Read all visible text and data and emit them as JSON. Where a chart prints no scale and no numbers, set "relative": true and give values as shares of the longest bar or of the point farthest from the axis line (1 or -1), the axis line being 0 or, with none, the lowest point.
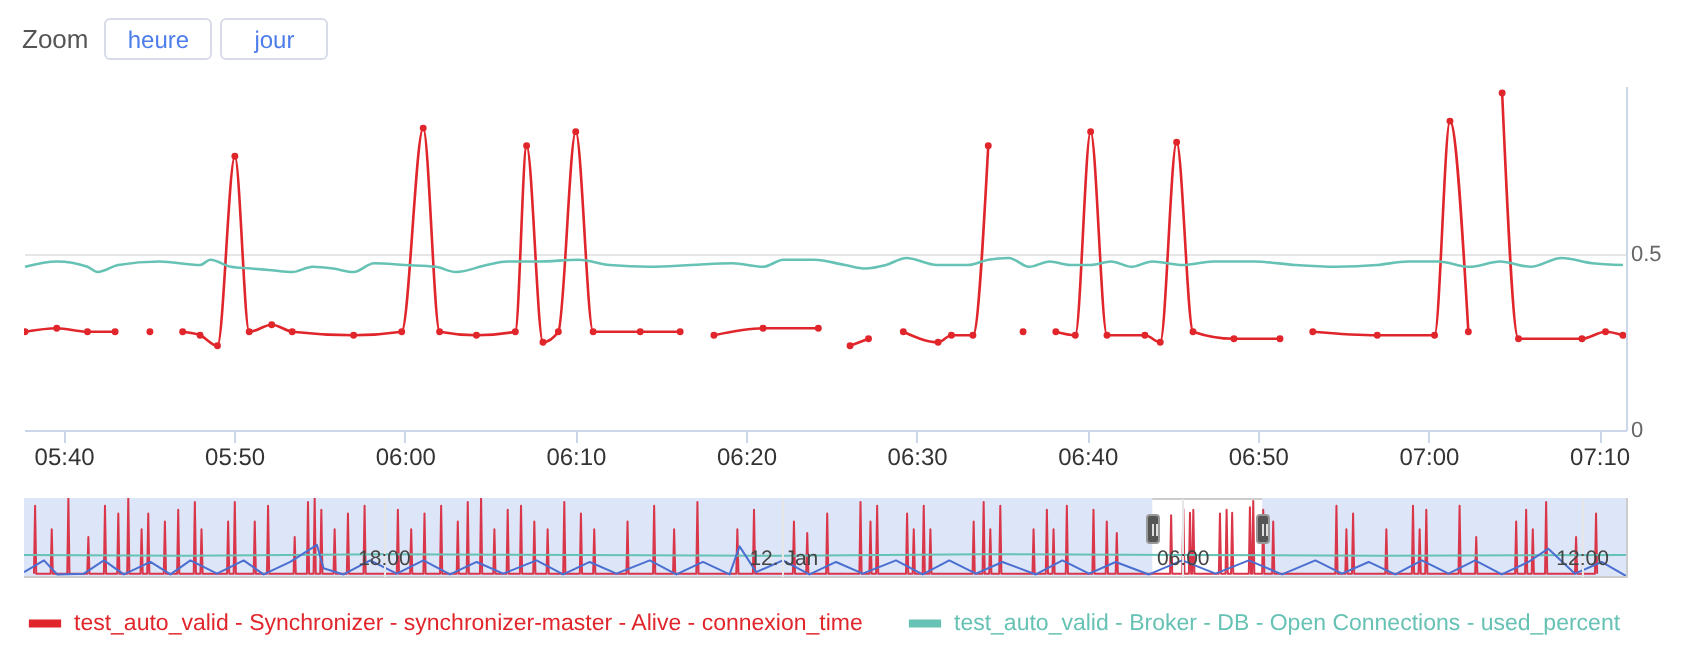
{
  "chart_data": [
    {
      "type": "line",
      "annotations": [
        "Zoom",
        "heure",
        "jour"
      ],
      "xlim": [
        5.628,
        7.193
      ],
      "xticks": [
        {
          "value": 5.6667,
          "label": "05:40"
        },
        {
          "value": 5.8333,
          "label": "05:50"
        },
        {
          "value": 6,
          "label": "06:00"
        },
        {
          "value": 6.1667,
          "label": "06:10"
        },
        {
          "value": 6.3333,
          "label": "06:20"
        },
        {
          "value": 6.5,
          "label": "06:30"
        },
        {
          "value": 6.6667,
          "label": "06:40"
        },
        {
          "value": 6.8333,
          "label": "06:50"
        },
        {
          "value": 7,
          "label": "07:00"
        },
        {
          "value": 7.1667,
          "label": "07:10"
        }
      ],
      "ylim": [
        0,
        0.98
      ],
      "yticks": [
        0,
        0.5
      ],
      "grid": "y",
      "legend": "bottom",
      "series": [
        {
          "name": "test_auto_valid - Synchronizer - synchronizer-master - Alive - connexion_time",
          "color": "#e0252b",
          "marker": "circle",
          "x": [
            5.629,
            5.66,
            5.69,
            5.717,
            5.734,
            5.751,
            5.767,
            5.783,
            5.8,
            5.817,
            5.834,
            5.848,
            5.87,
            5.89,
            5.95,
            5.997,
            6.018,
            6.034,
            6.07,
            6.108,
            6.119,
            6.135,
            6.15,
            6.167,
            6.184,
            6.23,
            6.269,
            6.285,
            6.302,
            6.35,
            6.404,
            6.42,
            6.435,
            6.453,
            6.47,
            6.487,
            6.521,
            6.534,
            6.555,
            6.57,
            6.587,
            6.604,
            6.62,
            6.636,
            6.655,
            6.67,
            6.686,
            6.723,
            6.738,
            6.754,
            6.77,
            6.81,
            6.855,
            6.87,
            6.887,
            6.95,
            7.006,
            7.021,
            7.039,
            7.055,
            7.072,
            7.088,
            7.15,
            7.173,
            7.19
          ],
          "values": [
            0.28,
            0.29,
            0.28,
            0.28,
            null,
            0.28,
            null,
            0.28,
            0.27,
            0.24,
            0.78,
            0.28,
            0.3,
            0.28,
            0.27,
            0.28,
            0.86,
            0.28,
            0.27,
            0.28,
            0.81,
            0.25,
            0.28,
            0.85,
            0.28,
            0.28,
            0.28,
            null,
            0.27,
            0.29,
            0.29,
            null,
            0.24,
            0.26,
            null,
            0.28,
            0.25,
            0.27,
            0.27,
            0.81,
            null,
            0.28,
            null,
            0.28,
            0.27,
            0.85,
            0.27,
            0.27,
            0.25,
            0.82,
            0.28,
            0.26,
            0.26,
            null,
            0.28,
            0.27,
            0.27,
            0.88,
            0.28,
            null,
            0.96,
            0.26,
            0.26,
            0.28,
            0.27
          ]
        },
        {
          "name": "test_auto_valid - Broker - DB - Open Connections - used_percent",
          "color": "#66c2b4",
          "marker": "none",
          "x": [
            5.629,
            5.66,
            5.69,
            5.7,
            5.72,
            5.76,
            5.8,
            5.81,
            5.83,
            5.85,
            5.87,
            5.89,
            5.91,
            5.93,
            5.95,
            5.97,
            6,
            6.03,
            6.05,
            6.08,
            6.1,
            6.13,
            6.17,
            6.2,
            6.24,
            6.28,
            6.32,
            6.35,
            6.37,
            6.4,
            6.43,
            6.45,
            6.47,
            6.49,
            6.52,
            6.55,
            6.57,
            6.59,
            6.61,
            6.63,
            6.65,
            6.67,
            6.69,
            6.71,
            6.73,
            6.76,
            6.79,
            6.83,
            6.87,
            6.91,
            6.95,
            6.98,
            7.01,
            7.04,
            7.07,
            7.1,
            7.13,
            7.16,
            7.19
          ],
          "values": [
            0.465,
            0.48,
            0.465,
            0.45,
            0.47,
            0.48,
            0.47,
            0.485,
            0.465,
            0.46,
            0.455,
            0.45,
            0.465,
            0.46,
            0.45,
            0.475,
            0.47,
            0.465,
            0.45,
            0.47,
            0.48,
            0.48,
            0.485,
            0.47,
            0.465,
            0.47,
            0.475,
            0.465,
            0.485,
            0.485,
            0.47,
            0.46,
            0.47,
            0.49,
            0.47,
            0.47,
            0.485,
            0.49,
            0.465,
            0.48,
            0.47,
            0.47,
            0.48,
            0.465,
            0.48,
            0.47,
            0.48,
            0.48,
            0.47,
            0.465,
            0.47,
            0.48,
            0.48,
            0.465,
            0.48,
            0.465,
            0.49,
            0.475,
            0.47
          ]
        }
      ]
    },
    {
      "type": "line",
      "relative": true,
      "xlim": [
        "--01-11T12:36",
        "--01-12T12:40"
      ],
      "xticks": [
        {
          "value": "--01-11T18:00",
          "label": "18:00"
        },
        {
          "value": "--01-12T00:00",
          "label": "12. Jan"
        },
        {
          "value": "--01-12T06:00",
          "label": "06:00"
        },
        {
          "value": "--01-12T12:00",
          "label": "12:00"
        }
      ],
      "grid": "x",
      "bands": [
        {
          "axis": "x",
          "from": "--01-11T12:36",
          "to": "--01-12T05:33",
          "color": "#dde5f8"
        },
        {
          "axis": "x",
          "from": "--01-12T07:12",
          "to": "--01-12T12:40",
          "color": "#dde5f8"
        }
      ],
      "series": [
        {
          "color": "#d9364a",
          "x": [
            "--01-11T12:45",
            "--01-11T12:46",
            "--01-11T12:47",
            "--01-11T13:00",
            "--01-11T13:01",
            "--01-11T13:02",
            "--01-11T13:15",
            "--01-11T13:16",
            "--01-11T13:17",
            "--01-11T13:33",
            "--01-11T13:34",
            "--01-11T13:35",
            "--01-11T13:48",
            "--01-11T13:49",
            "--01-11T13:50",
            "--01-11T14:00",
            "--01-11T14:01",
            "--01-11T14:02",
            "--01-11T14:09",
            "--01-11T14:10",
            "--01-11T14:11",
            "--01-11T14:21",
            "--01-11T14:22",
            "--01-11T14:23",
            "--01-11T14:27",
            "--01-11T14:28",
            "--01-11T14:29",
            "--01-11T14:42",
            "--01-11T14:43",
            "--01-11T14:44",
            "--01-11T14:54",
            "--01-11T14:55",
            "--01-11T14:56",
            "--01-11T15:09",
            "--01-11T15:10",
            "--01-11T15:11",
            "--01-11T15:15",
            "--01-11T15:16",
            "--01-11T15:17",
            "--01-11T15:39",
            "--01-11T15:40",
            "--01-11T15:41",
            "--01-11T15:45",
            "--01-11T15:46",
            "--01-11T15:47",
            "--01-11T16:03",
            "--01-11T16:04",
            "--01-11T16:05",
            "--01-11T16:15",
            "--01-11T16:16",
            "--01-11T16:17",
            "--01-11T16:39",
            "--01-11T16:40",
            "--01-11T16:41",
            "--01-11T16:51",
            "--01-11T16:52",
            "--01-11T16:53",
            "--01-11T16:57",
            "--01-11T16:58",
            "--01-11T16:59",
            "--01-11T17:03",
            "--01-11T17:04",
            "--01-11T17:05",
            "--01-11T17:15",
            "--01-11T17:16",
            "--01-11T17:17",
            "--01-11T17:27",
            "--01-11T17:28",
            "--01-11T17:29",
            "--01-11T17:42",
            "--01-11T17:43",
            "--01-11T17:44",
            "--01-11T18:12",
            "--01-11T18:13",
            "--01-11T18:14",
            "--01-11T18:24",
            "--01-11T18:25",
            "--01-11T18:26",
            "--01-11T18:36",
            "--01-11T18:37",
            "--01-11T18:38",
            "--01-11T18:51",
            "--01-11T18:52",
            "--01-11T18:53",
            "--01-11T19:06",
            "--01-11T19:07",
            "--01-11T19:08",
            "--01-11T19:15",
            "--01-11T19:16",
            "--01-11T19:17",
            "--01-11T19:27",
            "--01-11T19:28",
            "--01-11T19:29",
            "--01-11T19:39",
            "--01-11T19:40",
            "--01-11T19:41",
            "--01-11T19:51",
            "--01-11T19:52",
            "--01-11T19:53",
            "--01-11T20:03",
            "--01-11T20:04",
            "--01-11T20:05",
            "--01-11T20:15",
            "--01-11T20:16",
            "--01-11T20:17",
            "--01-11T20:27",
            "--01-11T20:28",
            "--01-11T20:29",
            "--01-11T20:42",
            "--01-11T20:43",
            "--01-11T20:44",
            "--01-11T20:57",
            "--01-11T20:58",
            "--01-11T20:59",
            "--01-11T21:09",
            "--01-11T21:10",
            "--01-11T21:11",
            "--01-11T21:39",
            "--01-11T21:40",
            "--01-11T21:41",
            "--01-11T22:03",
            "--01-11T22:04",
            "--01-11T22:05",
            "--01-11T22:21",
            "--01-11T22:22",
            "--01-11T22:23",
            "--01-11T22:42",
            "--01-11T22:43",
            "--01-11T22:44",
            "--01-11T23:18",
            "--01-11T23:19",
            "--01-11T23:20",
            "--01-11T23:33",
            "--01-11T23:34",
            "--01-11T23:35",
            "--01-12T00:09",
            "--01-12T00:10",
            "--01-12T00:11",
            "--01-12T00:21",
            "--01-12T00:22",
            "--01-12T00:23",
            "--01-12T00:39",
            "--01-12T00:40",
            "--01-12T00:41",
            "--01-12T01:09",
            "--01-12T01:10",
            "--01-12T01:11",
            "--01-12T01:18",
            "--01-12T01:19",
            "--01-12T01:20",
            "--01-12T01:24",
            "--01-12T01:25",
            "--01-12T01:26",
            "--01-12T01:51",
            "--01-12T01:52",
            "--01-12T01:53",
            "--01-12T01:57",
            "--01-12T01:58",
            "--01-12T01:59",
            "--01-12T02:06",
            "--01-12T02:07",
            "--01-12T02:08",
            "--01-12T02:12",
            "--01-12T02:13",
            "--01-12T02:14",
            "--01-12T02:51",
            "--01-12T02:52",
            "--01-12T02:53",
            "--01-12T03:00",
            "--01-12T03:01",
            "--01-12T03:02",
            "--01-12T03:06",
            "--01-12T03:07",
            "--01-12T03:08",
            "--01-12T03:15",
            "--01-12T03:16",
            "--01-12T03:17",
            "--01-12T03:45",
            "--01-12T03:46",
            "--01-12T03:47",
            "--01-12T03:57",
            "--01-12T03:58",
            "--01-12T03:59",
            "--01-12T04:03",
            "--01-12T04:04",
            "--01-12T04:05",
            "--01-12T04:15",
            "--01-12T04:16",
            "--01-12T04:17",
            "--01-12T04:39",
            "--01-12T04:40",
            "--01-12T04:41",
            "--01-12T04:51",
            "--01-12T04:52",
            "--01-12T04:53",
            "--01-12T05:00",
            "--01-12T05:01",
            "--01-12T05:02",
            "--01-12T05:49",
            "--01-12T05:50",
            "--01-12T05:51",
            "--01-12T06:00",
            "--01-12T06:01",
            "--01-12T06:02",
            "--01-12T06:06",
            "--01-12T06:07",
            "--01-12T06:08",
            "--01-12T06:09",
            "--01-12T06:10",
            "--01-12T06:11",
            "--01-12T06:33",
            "--01-12T06:34",
            "--01-12T06:35",
            "--01-12T06:39",
            "--01-12T06:40",
            "--01-12T06:41",
            "--01-12T06:44",
            "--01-12T06:45",
            "--01-12T06:46",
            "--01-12T07:00",
            "--01-12T07:01",
            "--01-12T07:02",
            "--01-12T07:03",
            "--01-12T07:04",
            "--01-12T07:05",
            "--01-12T07:12",
            "--01-12T07:13",
            "--01-12T07:14",
            "--01-12T07:21",
            "--01-12T07:22",
            "--01-12T07:23",
            "--01-12T08:18",
            "--01-12T08:19",
            "--01-12T08:20",
            "--01-12T08:27",
            "--01-12T08:28",
            "--01-12T08:29",
            "--01-12T08:33",
            "--01-12T08:34",
            "--01-12T08:35",
            "--01-12T09:03",
            "--01-12T09:04",
            "--01-12T09:05",
            "--01-12T09:27",
            "--01-12T09:28",
            "--01-12T09:29",
            "--01-12T09:33",
            "--01-12T09:34",
            "--01-12T09:35",
            "--01-12T09:39",
            "--01-12T09:40",
            "--01-12T09:41",
            "--01-12T10:09",
            "--01-12T10:10",
            "--01-12T10:11",
            "--01-12T10:24",
            "--01-12T10:25",
            "--01-12T10:26",
            "--01-12T11:00",
            "--01-12T11:01",
            "--01-12T11:02",
            "--01-12T11:09",
            "--01-12T11:10",
            "--01-12T11:11",
            "--01-12T11:15",
            "--01-12T11:16",
            "--01-12T11:17",
            "--01-12T11:27",
            "--01-12T11:28",
            "--01-12T11:29",
            "--01-12T11:54",
            "--01-12T11:55",
            "--01-12T11:56",
            "--01-12T12:12",
            "--01-12T12:13",
            "--01-12T12:14"
          ],
          "values": [
            0.03,
            0.9,
            0.03,
            0.03,
            0.6,
            0.03,
            0.03,
            1.0,
            0.03,
            0.03,
            0.5,
            0.03,
            0.03,
            0.9,
            0.03,
            0.03,
            0.8,
            0.03,
            0.03,
            1.0,
            0.03,
            0.03,
            0.6,
            0.03,
            0.03,
            0.8,
            0.03,
            0.03,
            0.7,
            0.03,
            0.03,
            0.85,
            0.03,
            0.03,
            0.95,
            0.03,
            0.03,
            0.6,
            0.03,
            0.03,
            0.7,
            0.03,
            0.03,
            0.95,
            0.03,
            0.03,
            0.7,
            0.03,
            0.03,
            0.9,
            0.03,
            0.03,
            0.5,
            0.03,
            0.03,
            0.95,
            0.03,
            0.03,
            1.0,
            0.03,
            0.03,
            0.85,
            0.03,
            0.03,
            0.6,
            0.03,
            0.03,
            0.8,
            0.03,
            0.03,
            0.9,
            0.03,
            0.03,
            0.85,
            0.03,
            0.03,
            0.6,
            0.03,
            0.03,
            0.8,
            0.03,
            0.03,
            0.9,
            0.03,
            0.03,
            0.7,
            0.03,
            0.03,
            0.95,
            0.03,
            0.03,
            1.0,
            0.03,
            0.03,
            0.6,
            0.03,
            0.03,
            0.85,
            0.03,
            0.03,
            0.9,
            0.03,
            0.03,
            0.7,
            0.03,
            0.03,
            0.6,
            0.03,
            0.03,
            0.95,
            0.03,
            0.03,
            0.8,
            0.03,
            0.03,
            0.6,
            0.03,
            0.03,
            0.7,
            0.03,
            0.03,
            0.9,
            0.03,
            0.03,
            0.6,
            0.03,
            0.03,
            0.95,
            0.03,
            0.03,
            0.6,
            0.03,
            0.03,
            0.85,
            0.03,
            0.03,
            0.7,
            0.03,
            0.03,
            0.55,
            0.03,
            0.03,
            0.8,
            0.03,
            0.03,
            0.95,
            0.03,
            0.03,
            0.7,
            0.03,
            0.03,
            0.9,
            0.03,
            0.03,
            0.8,
            0.03,
            0.03,
            0.6,
            0.03,
            0.03,
            0.9,
            0.03,
            0.03,
            0.6,
            0.03,
            0.03,
            0.7,
            0.03,
            0.03,
            0.95,
            0.03,
            0.03,
            0.6,
            0.03,
            0.03,
            0.9,
            0.03,
            0.03,
            0.6,
            0.03,
            0.03,
            0.85,
            0.03,
            0.03,
            0.6,
            0.03,
            0.03,
            0.9,
            0.03,
            0.03,
            0.85,
            0.03,
            0.03,
            0.7,
            0.03,
            0.03,
            0.55,
            0.03,
            0.03,
            0.78,
            0.03,
            0.03,
            0.86,
            0.03,
            0.03,
            0.81,
            0.03,
            0.03,
            0.85,
            0.03,
            0.03,
            0.8,
            0.03,
            0.03,
            0.85,
            0.03,
            0.03,
            0.81,
            0.03,
            0.03,
            0.88,
            0.03,
            0.03,
            0.96,
            0.03,
            0.03,
            0.85,
            0.03,
            0.03,
            0.7,
            0.03,
            0.03,
            0.9,
            0.03,
            0.03,
            0.6,
            0.03,
            0.03,
            0.8,
            0.03,
            0.03,
            0.6,
            0.03,
            0.03,
            0.9,
            0.03,
            0.03,
            0.6,
            0.03,
            0.03,
            0.85,
            0.03,
            0.03,
            0.9,
            0.03,
            0.03,
            0.5,
            0.03,
            0.03,
            0.7,
            0.03,
            0.03,
            0.85,
            0.03,
            0.03,
            0.6,
            0.03,
            0.03,
            0.95,
            0.03,
            0.03,
            0.5,
            0.03,
            0.03,
            0.8,
            0.03
          ]
        },
        {
          "color": "#66c2b4",
          "x": [
            "--01-11T12:36",
            "--01-11T15:00",
            "--01-11T18:00",
            "--01-11T21:00",
            "--01-12T00:00",
            "--01-12T03:00",
            "--01-12T06:00",
            "--01-12T09:00",
            "--01-12T12:40"
          ],
          "values": [
            0.27,
            0.26,
            0.28,
            0.27,
            0.26,
            0.28,
            0.27,
            0.26,
            0.27
          ]
        },
        {
          "color": "#4a6fd0",
          "x": [
            "--01-11T12:36",
            "--01-11T12:54",
            "--01-11T13:06",
            "--01-11T13:30",
            "--01-11T13:48",
            "--01-11T14:06",
            "--01-11T14:30",
            "--01-11T14:48",
            "--01-11T15:06",
            "--01-11T15:30",
            "--01-11T15:54",
            "--01-11T16:12",
            "--01-11T16:36",
            "--01-11T17:00",
            "--01-11T17:06",
            "--01-11T17:24",
            "--01-11T17:48",
            "--01-11T18:12",
            "--01-11T18:36",
            "--01-11T19:00",
            "--01-11T19:24",
            "--01-11T19:48",
            "--01-11T20:18",
            "--01-11T20:42",
            "--01-11T21:06",
            "--01-11T21:30",
            "--01-11T22:00",
            "--01-11T22:24",
            "--01-11T22:48",
            "--01-11T23:12",
            "--01-11T23:21",
            "--01-11T23:36",
            "--01-12T00:00",
            "--01-12T00:24",
            "--01-12T00:48",
            "--01-12T01:12",
            "--01-12T01:42",
            "--01-12T02:06",
            "--01-12T02:30",
            "--01-12T02:54",
            "--01-12T03:18",
            "--01-12T03:48",
            "--01-12T04:12",
            "--01-12T04:36",
            "--01-12T05:00",
            "--01-12T05:30",
            "--01-12T06:00",
            "--01-12T06:30",
            "--01-12T07:00",
            "--01-12T07:30",
            "--01-12T08:00",
            "--01-12T08:24",
            "--01-12T08:48",
            "--01-12T09:12",
            "--01-12T09:36",
            "--01-12T10:00",
            "--01-12T10:24",
            "--01-12T10:48",
            "--01-12T11:12",
            "--01-12T11:30",
            "--01-12T11:54",
            "--01-12T12:18",
            "--01-12T12:40"
          ],
          "values": [
            0.05,
            0.2,
            0.02,
            0.03,
            0.2,
            0.02,
            0.18,
            0.02,
            0.2,
            0.03,
            0.2,
            0.02,
            0.18,
            0.4,
            0.1,
            0.02,
            0.2,
            0.03,
            0.2,
            0.02,
            0.18,
            0.03,
            0.2,
            0.02,
            0.18,
            0.03,
            0.2,
            0.02,
            0.18,
            0.02,
            0.38,
            0.05,
            0.2,
            0.02,
            0.18,
            0.03,
            0.2,
            0.02,
            0.2,
            0.03,
            0.18,
            0.02,
            0.2,
            0.03,
            0.18,
            0.02,
            0.2,
            0.03,
            0.2,
            0.02,
            0.2,
            0.03,
            0.18,
            0.02,
            0.2,
            0.03,
            0.2,
            0.02,
            0.18,
            0.35,
            0.03,
            0.18,
            0
          ]
        }
      ]
    }
  ]
}
